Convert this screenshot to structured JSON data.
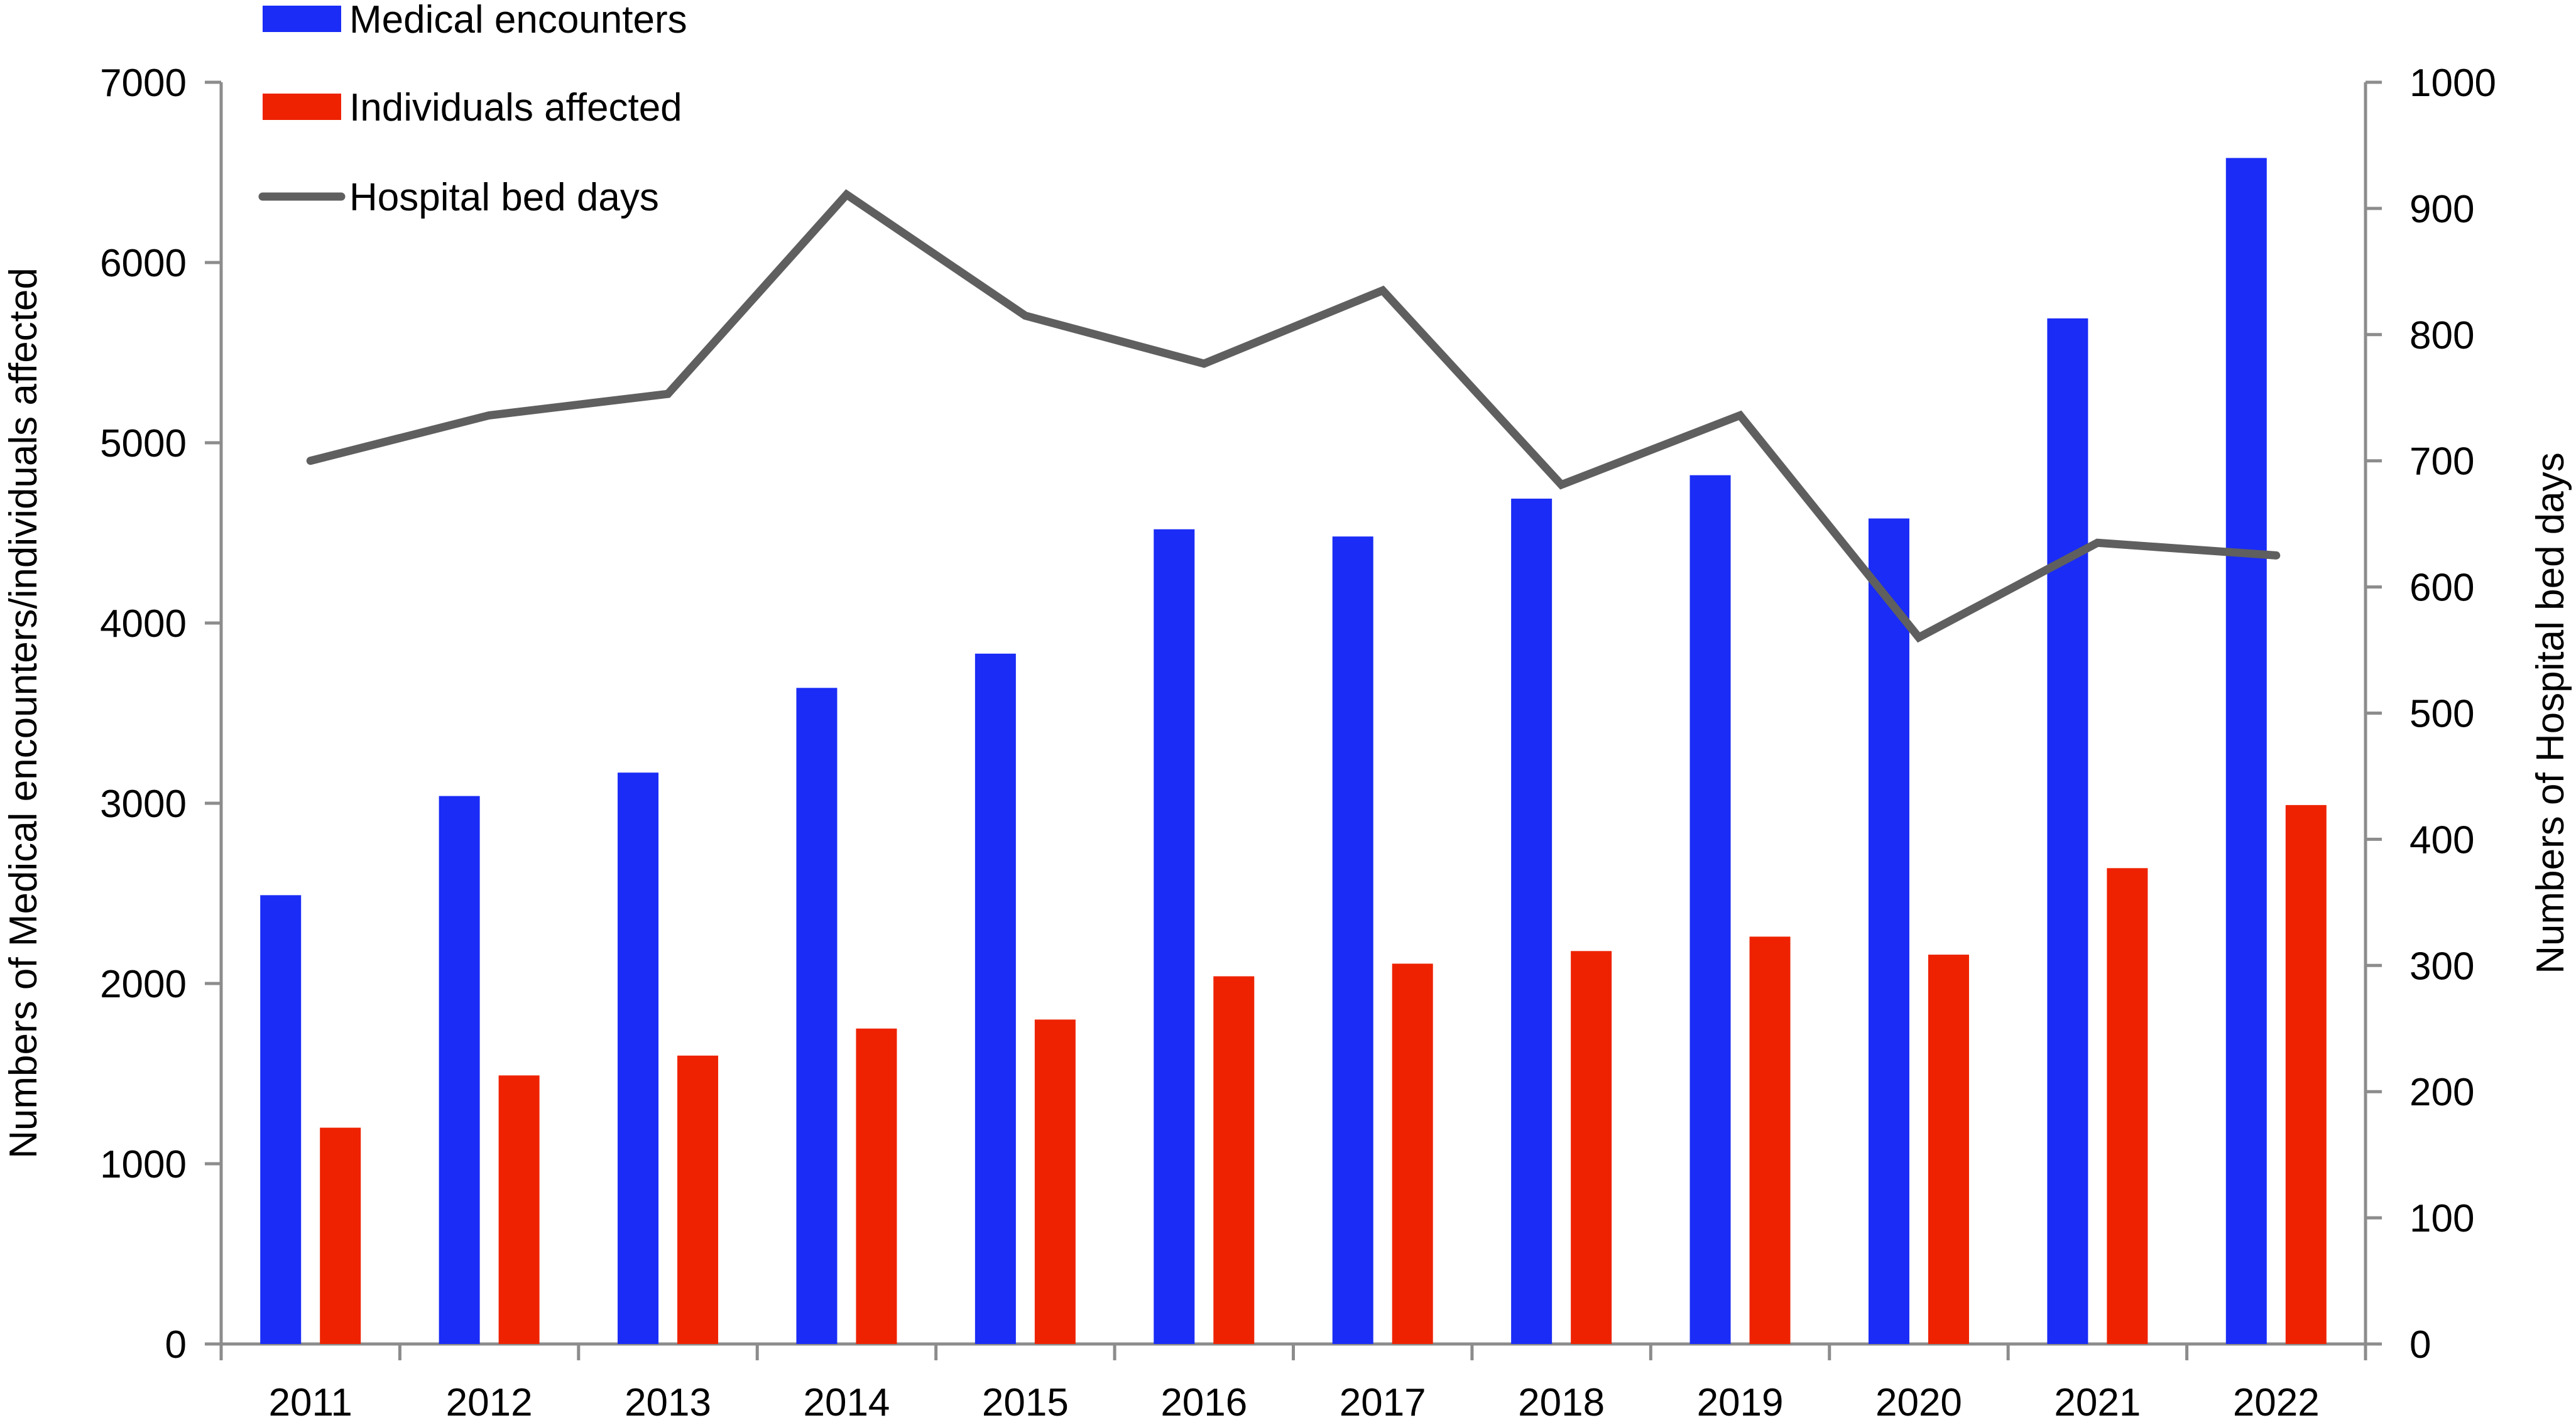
{
  "chart_data": {
    "type": "bar",
    "categories": [
      "2011",
      "2012",
      "2013",
      "2014",
      "2015",
      "2016",
      "2017",
      "2018",
      "2019",
      "2020",
      "2021",
      "2022"
    ],
    "series": [
      {
        "name": "Medical encounters",
        "type": "bar",
        "axis": "left",
        "color": "#1a2cf5",
        "values": [
          2490,
          3040,
          3170,
          3640,
          3830,
          4520,
          4480,
          4690,
          4820,
          4580,
          5690,
          6580
        ]
      },
      {
        "name": "Individuals affected",
        "type": "bar",
        "axis": "left",
        "color": "#ee2200",
        "values": [
          1200,
          1490,
          1600,
          1750,
          1800,
          2040,
          2110,
          2180,
          2260,
          2160,
          2640,
          2990
        ]
      },
      {
        "name": "Hospital bed days",
        "type": "line",
        "axis": "right",
        "color": "#5f5f5f",
        "values": [
          700,
          736,
          753,
          911,
          815,
          777,
          835,
          681,
          736,
          560,
          635,
          625
        ]
      }
    ],
    "ylabel": "Numbers of Medical encounters/individuals affected",
    "y2label": "Numbers of Hospital bed days",
    "ylim": [
      0,
      7000
    ],
    "yticks": [
      "0",
      "1000",
      "2000",
      "3000",
      "4000",
      "5000",
      "6000",
      "7000"
    ],
    "y2lim": [
      0,
      1000
    ],
    "y2ticks": [
      "0",
      "100",
      "200",
      "300",
      "400",
      "500",
      "600",
      "700",
      "800",
      "900",
      "1000"
    ],
    "grid": false,
    "legend_position": "top-left"
  }
}
